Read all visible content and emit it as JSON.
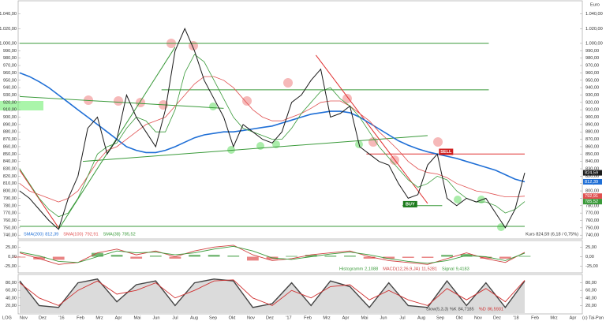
{
  "chart_data": [
    {
      "type": "line",
      "unit": "Euro",
      "scale_label": "LOG",
      "copyright": "(c) Tai-Pan",
      "kurs_text": "Kurs 824,59 (6,18 / 0,75%)",
      "x_labels": [
        "Nov",
        "Dez",
        "'16",
        "Feb",
        "Mrz",
        "Apr",
        "Mai",
        "Jun",
        "Jul",
        "Aug",
        "Sep",
        "Okt",
        "Nov",
        "Dez",
        "'17",
        "Feb",
        "Mrz",
        "Apr",
        "Mai",
        "Jun",
        "Jul",
        "Aug",
        "Sep",
        "Okt",
        "Nov",
        "Dez",
        "'18",
        "Feb",
        "Mrz",
        "Apr"
      ],
      "ylim": [
        737,
        1055.6
      ],
      "yticks": [
        {
          "value": 1040,
          "label": "1.040,00"
        },
        {
          "value": 1020,
          "label": "1.020,00"
        },
        {
          "value": 1000,
          "label": "1.000,00"
        },
        {
          "value": 990,
          "label": "990,00"
        },
        {
          "value": 980,
          "label": "980,00"
        },
        {
          "value": 970,
          "label": "970,00"
        },
        {
          "value": 960,
          "label": "960,00"
        },
        {
          "value": 950,
          "label": "950,00"
        },
        {
          "value": 940,
          "label": "940,00"
        },
        {
          "value": 930,
          "label": "930,00"
        },
        {
          "value": 920,
          "label": "920,00"
        },
        {
          "value": 910,
          "label": "910,00"
        },
        {
          "value": 900,
          "label": "900,00"
        },
        {
          "value": 890,
          "label": "890,00"
        },
        {
          "value": 880,
          "label": "880,00"
        },
        {
          "value": 870,
          "label": "870,00"
        },
        {
          "value": 860,
          "label": "860,00"
        },
        {
          "value": 850,
          "label": "850,00"
        },
        {
          "value": 840,
          "label": "840,00"
        },
        {
          "value": 830,
          "label": "830,00"
        },
        {
          "value": 820,
          "label": "820,00"
        },
        {
          "value": 810,
          "label": "810,00"
        },
        {
          "value": 800,
          "label": "800,00"
        },
        {
          "value": 790,
          "label": "790,00"
        },
        {
          "value": 780,
          "label": "780,00"
        },
        {
          "value": 770,
          "label": "770,00"
        },
        {
          "value": 760,
          "label": "760,00"
        },
        {
          "value": 750,
          "label": "750,00"
        },
        {
          "value": 740,
          "label": "740,00"
        }
      ],
      "hlines": [
        {
          "value": 1000,
          "from": 0,
          "to": 48.3,
          "color": "#3a9a3a"
        },
        {
          "value": 937,
          "from": 14.6,
          "to": 48.3,
          "color": "#3a9a3a"
        },
        {
          "value": 850,
          "from": 35.7,
          "to": 52,
          "color": "#e03030"
        },
        {
          "value": 752,
          "from": 0,
          "to": 52,
          "color": "#3a9a3a"
        },
        {
          "value": 780,
          "from": 39.4,
          "to": 43.5,
          "color": "#3a9a3a"
        }
      ],
      "trendlines": [
        {
          "points": [
            [
              0,
              928
            ],
            [
              21,
              912
            ]
          ],
          "color": "#3a9a3a"
        },
        {
          "points": [
            [
              4,
              748
            ],
            [
              16,
              995
            ]
          ],
          "color": "#3a9a3a"
        },
        {
          "points": [
            [
              6.5,
              840
            ],
            [
              42,
              875
            ]
          ],
          "color": "#3a9a3a"
        },
        {
          "points": [
            [
              30.5,
              984
            ],
            [
              42,
              783
            ]
          ],
          "color": "#e03030"
        },
        {
          "points": [
            [
              0,
              828
            ],
            [
              4,
              750
            ]
          ],
          "color": "#e03030"
        }
      ],
      "annotations": [
        {
          "text": "BUY",
          "index": 40.2,
          "value": 782,
          "color": "#1c7a1c"
        },
        {
          "text": "SELL",
          "index": 43.9,
          "value": 853,
          "color": "#d02020"
        }
      ],
      "series": [
        {
          "name": "SMA(200)",
          "color": "#1f6fd6",
          "width": 1.6,
          "end_label": "812,39",
          "values": [
            960,
            955,
            948,
            940,
            930,
            920,
            910,
            900,
            890,
            880,
            870,
            860,
            855,
            852,
            852,
            855,
            860,
            866,
            872,
            876,
            878,
            880,
            880,
            882,
            884,
            886,
            888,
            892,
            896,
            900,
            904,
            906,
            908,
            908,
            906,
            900,
            892,
            884,
            876,
            868,
            862,
            857,
            853,
            850,
            847,
            844,
            840,
            836,
            832,
            828,
            822,
            816,
            812.39
          ]
        },
        {
          "name": "SMA(100)",
          "color": "#e05050",
          "width": 0.8,
          "end_label": "792,91",
          "values": [
            810,
            800,
            795,
            790,
            785,
            790,
            800,
            820,
            840,
            855,
            860,
            870,
            880,
            890,
            895,
            900,
            915,
            930,
            945,
            955,
            955,
            950,
            940,
            925,
            910,
            900,
            895,
            895,
            900,
            905,
            912,
            920,
            922,
            922,
            915,
            905,
            895,
            880,
            868,
            855,
            840,
            830,
            825,
            823,
            818,
            810,
            805,
            800,
            798,
            795,
            792,
            792,
            792.91
          ]
        },
        {
          "name": "SMA(38)",
          "color": "#3a9a3a",
          "width": 0.8,
          "end_label": "785,52",
          "values": [
            830,
            810,
            790,
            775,
            765,
            770,
            790,
            820,
            850,
            860,
            865,
            885,
            900,
            895,
            880,
            880,
            910,
            960,
            985,
            975,
            950,
            925,
            900,
            885,
            880,
            875,
            870,
            870,
            885,
            905,
            920,
            935,
            940,
            925,
            915,
            900,
            880,
            860,
            845,
            830,
            815,
            805,
            810,
            820,
            815,
            800,
            790,
            785,
            785,
            780,
            770,
            775,
            785.52
          ]
        },
        {
          "color": "#1a1a1a",
          "width": 1,
          "end_label": "824,59",
          "values": [
            800,
            790,
            775,
            760,
            748,
            790,
            820,
            885,
            900,
            850,
            870,
            930,
            900,
            880,
            860,
            910,
            990,
            1020,
            990,
            950,
            925,
            900,
            860,
            890,
            880,
            870,
            865,
            880,
            920,
            930,
            950,
            965,
            900,
            905,
            915,
            860,
            850,
            840,
            835,
            810,
            790,
            795,
            835,
            850,
            790,
            780,
            790,
            785,
            790,
            770,
            750,
            775,
            824.59
          ]
        }
      ]
    },
    {
      "type": "line",
      "ylim": [
        -40,
        40
      ],
      "yticks": [
        {
          "value": 25,
          "label": "25,00"
        },
        {
          "value": 0,
          "label": "0,00"
        },
        {
          "value": -25,
          "label": "-25,00"
        }
      ],
      "series": [
        {
          "name": "Histogramm",
          "style": "bar",
          "color": "#3a9a3a",
          "neg_color": "#e05050",
          "legend_value": "2,1088",
          "values": [
            -2,
            -7,
            -8,
            0,
            10,
            5,
            -5,
            3,
            -5,
            5,
            5,
            3,
            -10,
            -7,
            2,
            5,
            3,
            3,
            -5,
            -5,
            -3,
            -3,
            5,
            7,
            -5,
            -5,
            2.1088
          ]
        },
        {
          "name": "MACD(12,26,9,JA)",
          "color": "#d04040",
          "width": 0.9,
          "legend_value": "11,5281",
          "values": [
            10,
            -5,
            -20,
            -15,
            10,
            20,
            5,
            15,
            0,
            15,
            25,
            30,
            5,
            -10,
            -5,
            5,
            10,
            15,
            0,
            -10,
            -15,
            -20,
            -5,
            10,
            -5,
            -15,
            11.5281
          ]
        },
        {
          "name": "Signal",
          "color": "#3a9a3a",
          "width": 0.9,
          "legend_value": "9,4183",
          "values": [
            12,
            2,
            -12,
            -15,
            0,
            15,
            10,
            12,
            5,
            10,
            20,
            27,
            15,
            -3,
            -7,
            0,
            7,
            12,
            5,
            -5,
            -12,
            -17,
            -10,
            3,
            0,
            -10,
            9.4183
          ]
        }
      ]
    },
    {
      "type": "line",
      "ylim": [
        0,
        100
      ],
      "yticks": [
        {
          "value": 80,
          "label": "80,00"
        },
        {
          "value": 60,
          "label": "60,00"
        },
        {
          "value": 40,
          "label": "40,00"
        },
        {
          "value": 20,
          "label": "20,00"
        }
      ],
      "series": [
        {
          "name": "Slow(5,3,3) %K",
          "color": "#444444",
          "width": 1.4,
          "legend_value": "84,7185",
          "values": [
            85,
            20,
            15,
            80,
            90,
            30,
            75,
            85,
            20,
            80,
            90,
            85,
            15,
            25,
            80,
            20,
            85,
            70,
            15,
            80,
            20,
            15,
            85,
            20,
            80,
            15,
            84.7185
          ]
        },
        {
          "name": "%D",
          "color": "#d03030",
          "width": 0.9,
          "legend_value": "86,5931",
          "values": [
            80,
            40,
            20,
            60,
            85,
            50,
            60,
            80,
            40,
            60,
            85,
            88,
            40,
            20,
            60,
            40,
            70,
            75,
            35,
            60,
            35,
            20,
            65,
            35,
            65,
            30,
            86.5931
          ]
        }
      ]
    }
  ]
}
